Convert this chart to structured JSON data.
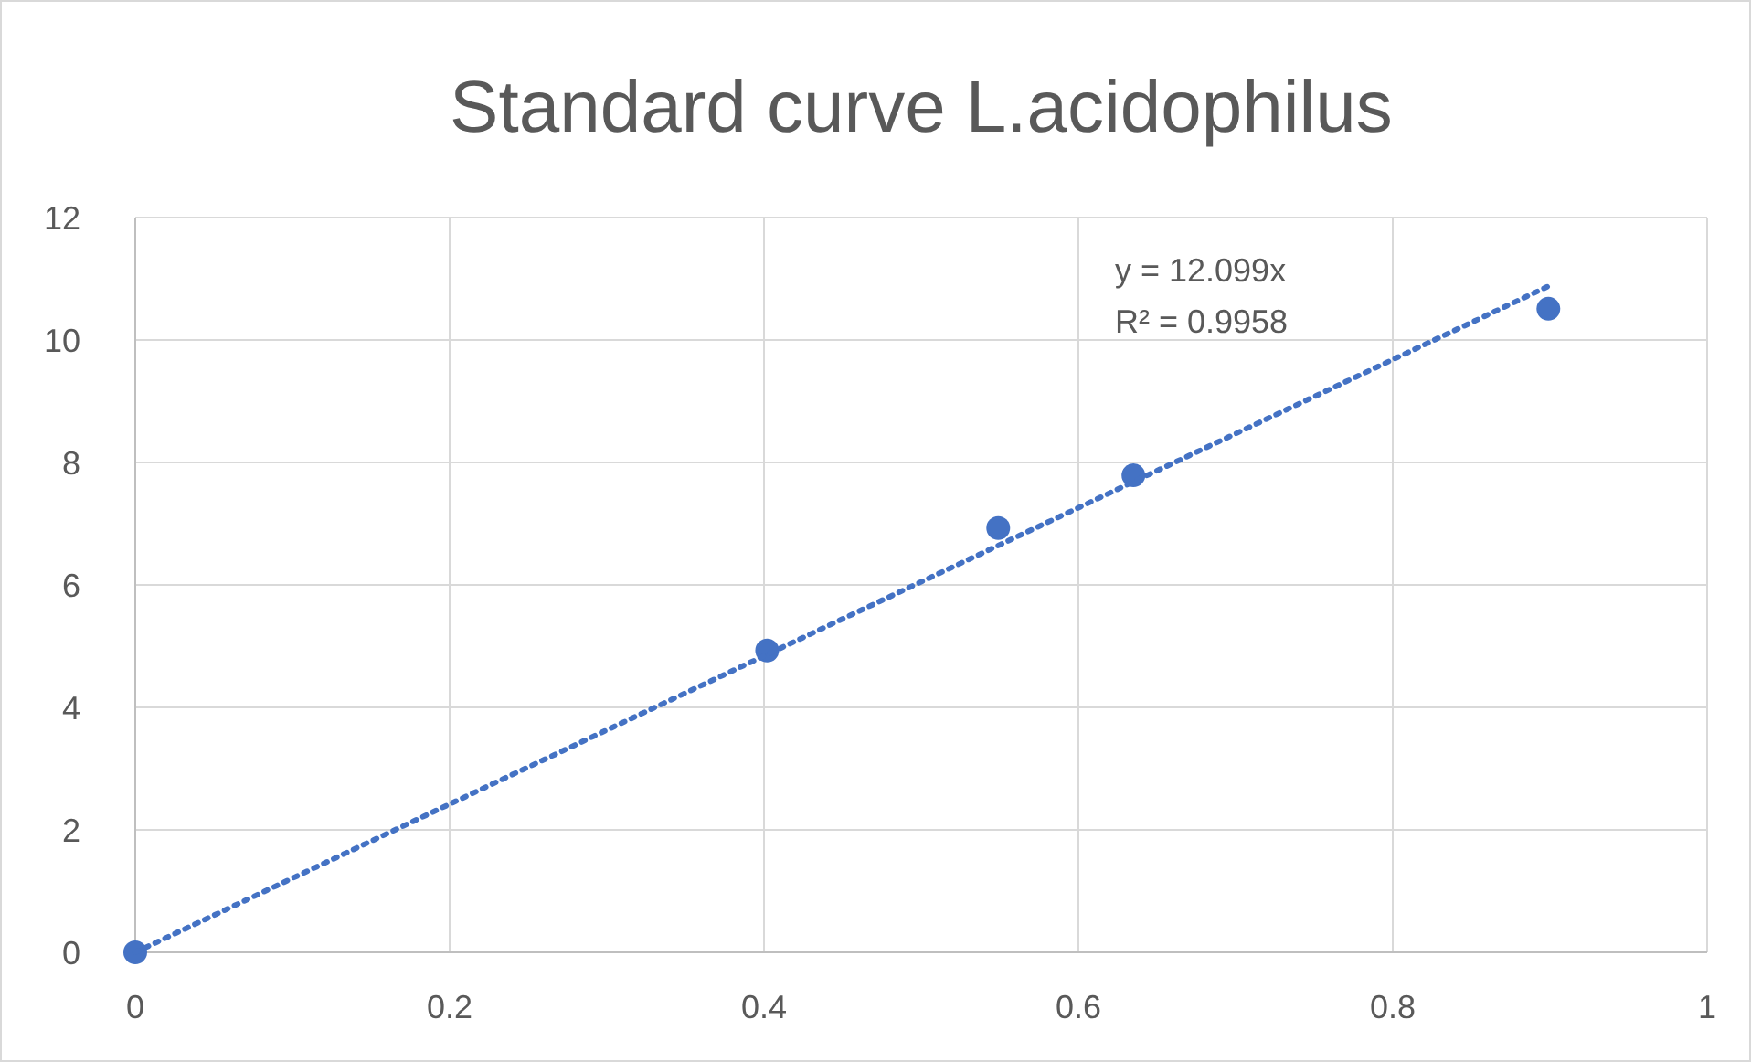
{
  "chart_data": {
    "type": "scatter",
    "title": "Standard curve L.acidophilus",
    "xlim": [
      0,
      1
    ],
    "xticks": [
      0,
      0.2,
      0.4,
      0.6,
      0.8,
      1
    ],
    "ylim": [
      0,
      12
    ],
    "yticks": [
      0,
      2,
      4,
      6,
      8,
      10,
      12
    ],
    "grid": true,
    "series": [
      {
        "color": "#4472c4",
        "marker": "circle",
        "x": [
          0,
          0.402,
          0.549,
          0.635,
          0.899
        ],
        "values": [
          0,
          4.93,
          6.93,
          7.79,
          10.51
        ]
      },
      {
        "type": "line",
        "color": "#4472c4",
        "marker": "none",
        "line_style": "dotted",
        "x": [
          0,
          0.9
        ],
        "values": [
          0,
          10.89
        ]
      }
    ],
    "annotations": [
      "y = 12.099x",
      "R² = 0.9958"
    ]
  }
}
